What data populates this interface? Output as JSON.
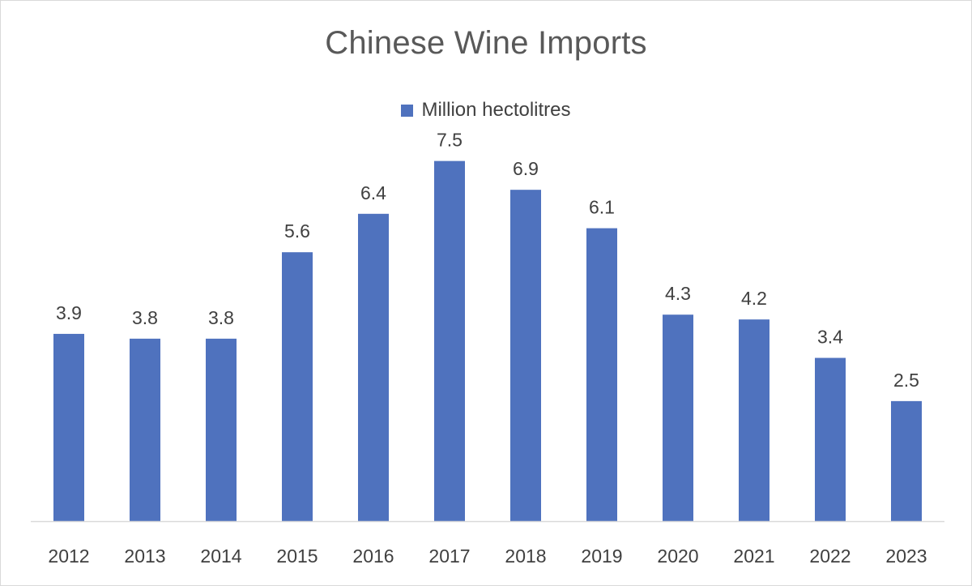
{
  "chart_data": {
    "type": "bar",
    "title": "Chinese Wine Imports",
    "xlabel": "",
    "ylabel": "",
    "ylim": [
      0,
      8
    ],
    "grid": false,
    "legend_position": "top-center",
    "categories": [
      "2012",
      "2013",
      "2014",
      "2015",
      "2016",
      "2017",
      "2018",
      "2019",
      "2020",
      "2021",
      "2022",
      "2023"
    ],
    "series": [
      {
        "name": "Million hectolitres",
        "color": "#4f72be",
        "values": [
          3.9,
          3.8,
          3.8,
          5.6,
          6.4,
          7.5,
          6.9,
          6.1,
          4.3,
          4.2,
          3.4,
          2.5
        ],
        "labels": [
          "3.9",
          "3.8",
          "3.8",
          "5.6",
          "6.4",
          "7.5",
          "6.9",
          "6.1",
          "4.3",
          "4.2",
          "3.4",
          "2.5"
        ]
      }
    ]
  },
  "colors": {
    "bar": "#4f72be",
    "axis": "#d9d9d9",
    "title": "#595959",
    "text": "#404040"
  }
}
